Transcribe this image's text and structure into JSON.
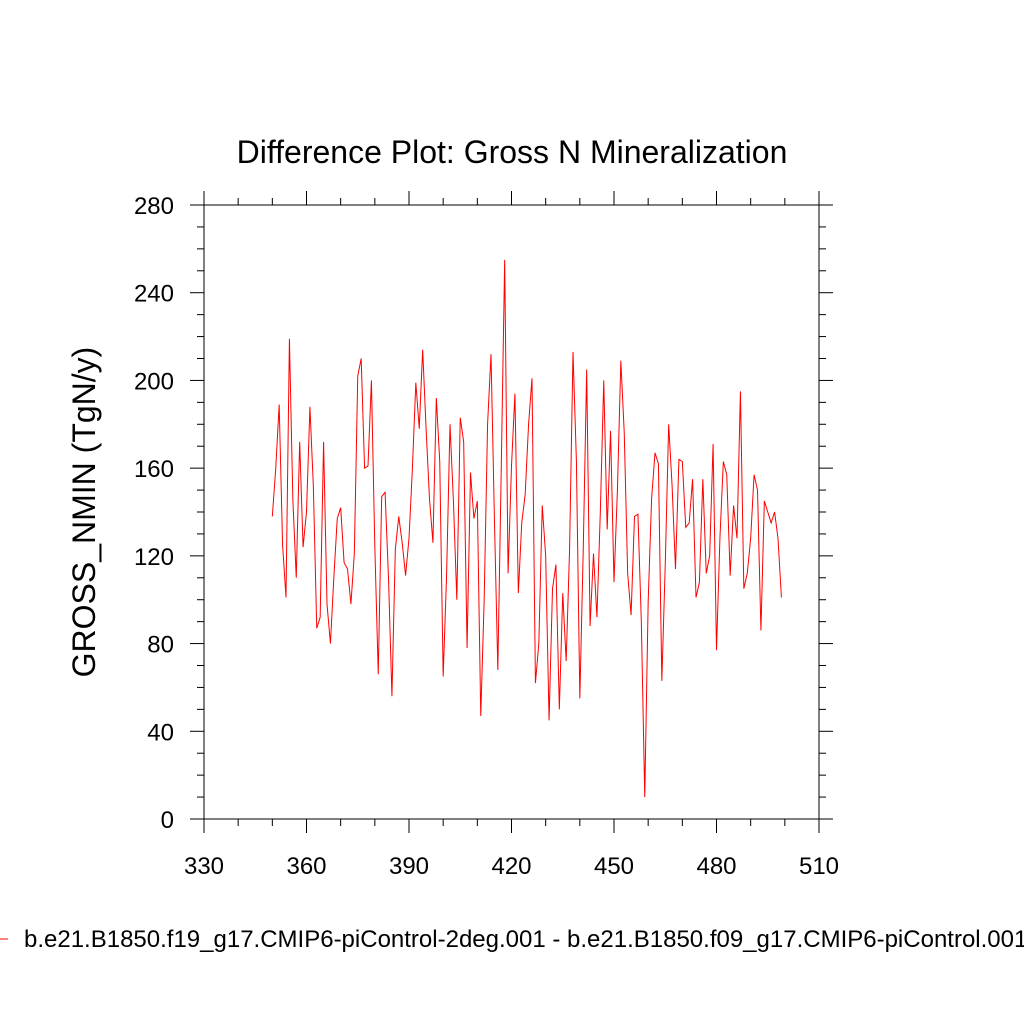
{
  "chart_data": {
    "type": "line",
    "title": "Difference Plot: Gross N Mineralization",
    "xlabel": "",
    "ylabel": "GROSS_NMIN  (TgN/y)",
    "xlim": [
      330,
      510
    ],
    "ylim": [
      0,
      280
    ],
    "xticks": [
      "330",
      "360",
      "390",
      "420",
      "450",
      "480",
      "510"
    ],
    "yticks": [
      "0",
      "40",
      "80",
      "120",
      "160",
      "200",
      "240",
      "280"
    ],
    "series": [
      {
        "name": "b.e21.B1850.f19_g17.CMIP6-piControl-2deg.001 - b.e21.B1850.f09_g17.CMIP6-piControl.001",
        "color": "#ff0000",
        "x_start": 350,
        "x_step": 1,
        "values": [
          138,
          160,
          189,
          125,
          101,
          219,
          146,
          110,
          172,
          124,
          140,
          188,
          152,
          87,
          92,
          172,
          98,
          80,
          110,
          137,
          142,
          117,
          114,
          98,
          121,
          202,
          210,
          160,
          161,
          200,
          124,
          66,
          147,
          149,
          110,
          56,
          123,
          138,
          126,
          111,
          128,
          160,
          199,
          178,
          214,
          178,
          146,
          126,
          192,
          163,
          65,
          111,
          180,
          145,
          100,
          183,
          172,
          78,
          158,
          137,
          145,
          47,
          100,
          180,
          212,
          137,
          68,
          160,
          255,
          112,
          161,
          194,
          103,
          135,
          148,
          180,
          201,
          62,
          80,
          143,
          120,
          45,
          105,
          116,
          50,
          103,
          72,
          123,
          213,
          163,
          55,
          123,
          205,
          88,
          121,
          92,
          140,
          200,
          132,
          177,
          108,
          150,
          209,
          176,
          112,
          93,
          138,
          139,
          90,
          10,
          99,
          146,
          167,
          162,
          63,
          116,
          180,
          152,
          114,
          164,
          163,
          133,
          135,
          155,
          101,
          108,
          155,
          112,
          120,
          171,
          77,
          128,
          163,
          157,
          111,
          143,
          128,
          195,
          105,
          112,
          128,
          157,
          150,
          86,
          145,
          140,
          135,
          140,
          128,
          101
        ]
      }
    ]
  },
  "legend": {
    "text": "b.e21.B1850.f19_g17.CMIP6-piControl-2deg.001 - b.e21.B1850.f09_g17.CMIP6-piControl.001"
  }
}
